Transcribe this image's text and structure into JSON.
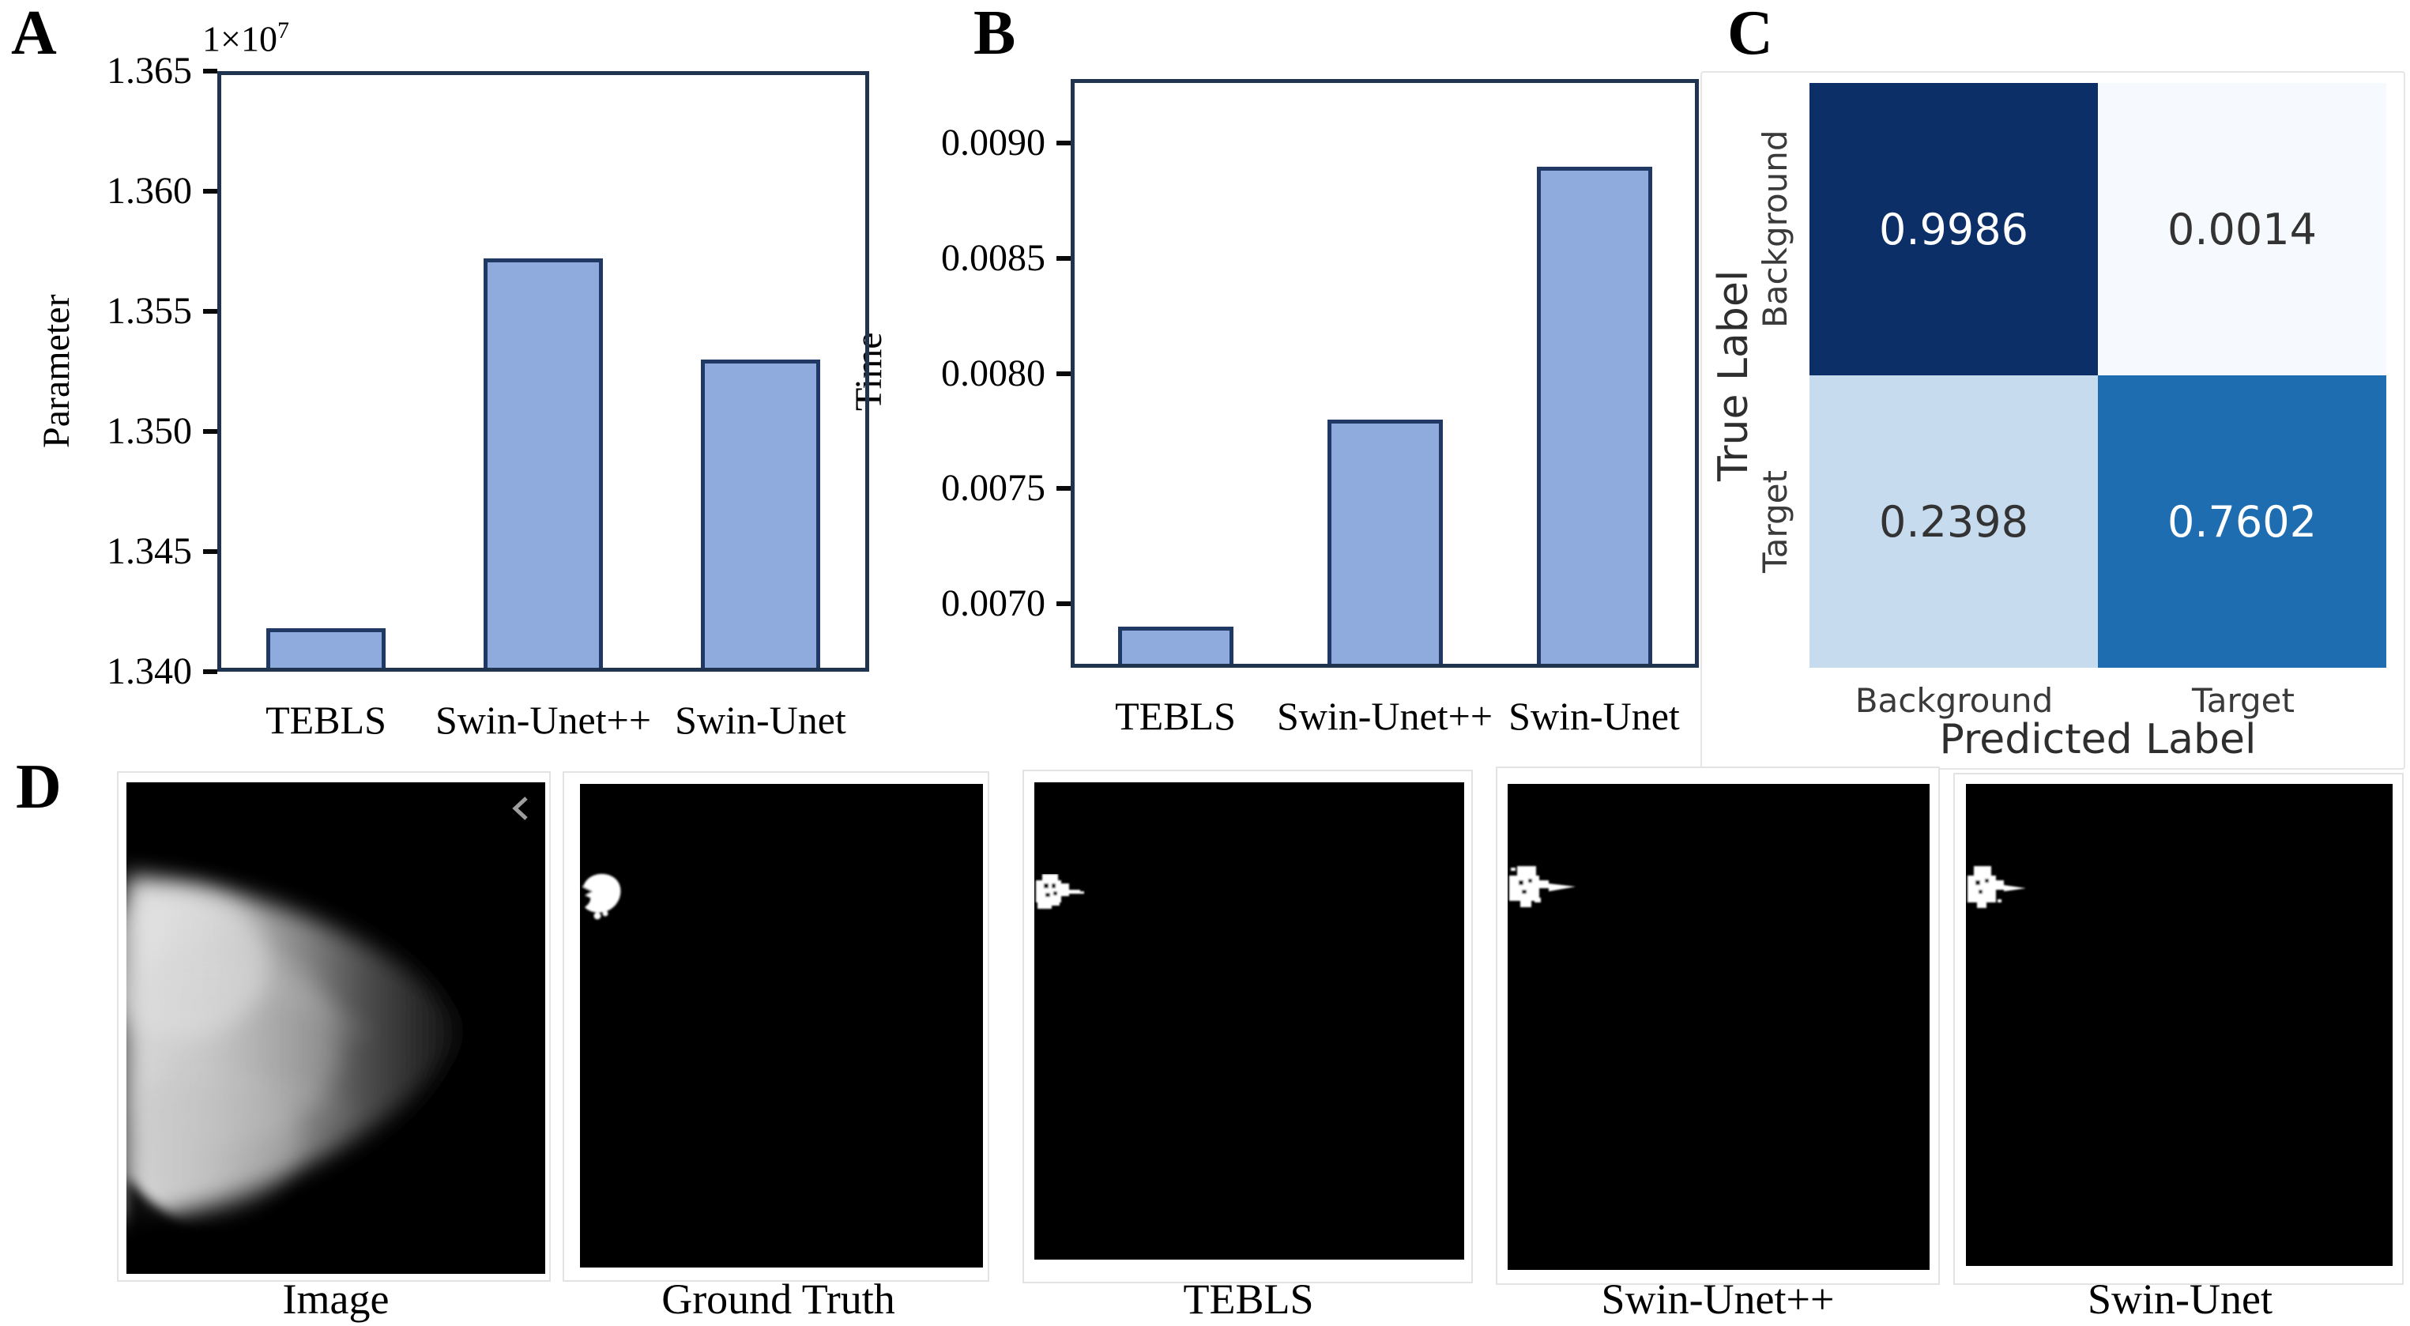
{
  "panels": {
    "A": {
      "label": "A"
    },
    "B": {
      "label": "B"
    },
    "C": {
      "label": "C"
    },
    "D": {
      "label": "D"
    }
  },
  "chart_data": [
    {
      "id": "parameters-bar-chart",
      "type": "bar",
      "panel": "A",
      "title": "",
      "ylabel": "Parameter",
      "xlabel": "",
      "offset_text": {
        "base": "1×10",
        "exp": "7"
      },
      "categories": [
        "TEBLS",
        "Swin-Unet++",
        "Swin-Unet"
      ],
      "values": [
        13418000,
        13572000,
        13530000
      ],
      "ylim": [
        13400000,
        13650000
      ],
      "yticks": [
        {
          "value": 13400000,
          "label": "1.340"
        },
        {
          "value": 13450000,
          "label": "1.345"
        },
        {
          "value": 13500000,
          "label": "1.350"
        },
        {
          "value": 13550000,
          "label": "1.355"
        },
        {
          "value": 13600000,
          "label": "1.360"
        },
        {
          "value": 13650000,
          "label": "1.365"
        }
      ],
      "grid": false,
      "legend": null,
      "bar_fill": "#8FAADD",
      "bar_edge": "#1F3864"
    },
    {
      "id": "inference-time-bar-chart",
      "type": "bar",
      "panel": "B",
      "title": "",
      "ylabel": "Time",
      "xlabel": "",
      "categories": [
        "TEBLS",
        "Swin-Unet++",
        "Swin-Unet"
      ],
      "values": [
        0.0069,
        0.0078,
        0.0089
      ],
      "ylim": [
        0.00672,
        0.00928
      ],
      "yticks": [
        {
          "value": 0.007,
          "label": "0.0070"
        },
        {
          "value": 0.0075,
          "label": "0.0075"
        },
        {
          "value": 0.008,
          "label": "0.0080"
        },
        {
          "value": 0.0085,
          "label": "0.0085"
        },
        {
          "value": 0.009,
          "label": "0.0090"
        }
      ],
      "grid": false,
      "legend": null,
      "bar_fill": "#8FAADD",
      "bar_edge": "#1F3864"
    },
    {
      "id": "confusion-matrix",
      "type": "heatmap",
      "panel": "C",
      "xlabel": "Predicted Label",
      "ylabel": "True Label",
      "x_categories": [
        "Background",
        "Target"
      ],
      "y_categories": [
        "Background",
        "Target"
      ],
      "matrix": [
        [
          0.9986,
          0.0014
        ],
        [
          0.2398,
          0.7602
        ]
      ],
      "cells": [
        {
          "row": "Background",
          "col": "Background",
          "value": "0.9986",
          "bg": "#0B2F66",
          "fg": "#FFFFFF"
        },
        {
          "row": "Background",
          "col": "Target",
          "value": "0.0014",
          "bg": "#F6FAFE",
          "fg": "#333333"
        },
        {
          "row": "Target",
          "col": "Background",
          "value": "0.2398",
          "bg": "#C7DBEF",
          "fg": "#333333"
        },
        {
          "row": "Target",
          "col": "Target",
          "value": "0.7602",
          "bg": "#1F6DB1",
          "fg": "#FFFFFF"
        }
      ]
    }
  ],
  "panel_d": {
    "items": [
      {
        "caption": "Image",
        "kind": "mammogram-photo"
      },
      {
        "caption": "Ground Truth",
        "kind": "binary-mask"
      },
      {
        "caption": "TEBLS",
        "kind": "binary-mask"
      },
      {
        "caption": "Swin-Unet++",
        "kind": "binary-mask"
      },
      {
        "caption": "Swin-Unet",
        "kind": "binary-mask"
      }
    ]
  }
}
